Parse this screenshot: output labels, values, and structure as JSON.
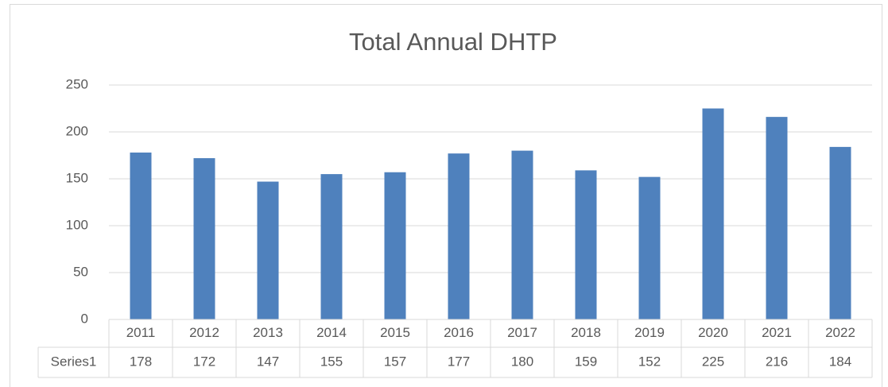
{
  "chart_data": {
    "type": "bar",
    "title": "Total Annual DHTP",
    "categories": [
      "2011",
      "2012",
      "2013",
      "2014",
      "2015",
      "2016",
      "2017",
      "2018",
      "2019",
      "2020",
      "2021",
      "2022"
    ],
    "series": [
      {
        "name": "Series1",
        "color": "#4f81bd",
        "values": [
          178,
          172,
          147,
          155,
          157,
          177,
          180,
          159,
          152,
          225,
          216,
          184
        ]
      }
    ],
    "ylim": [
      0,
      250
    ],
    "yticks": [
      0,
      50,
      100,
      150,
      200,
      250
    ],
    "grid": true,
    "data_table": true
  }
}
